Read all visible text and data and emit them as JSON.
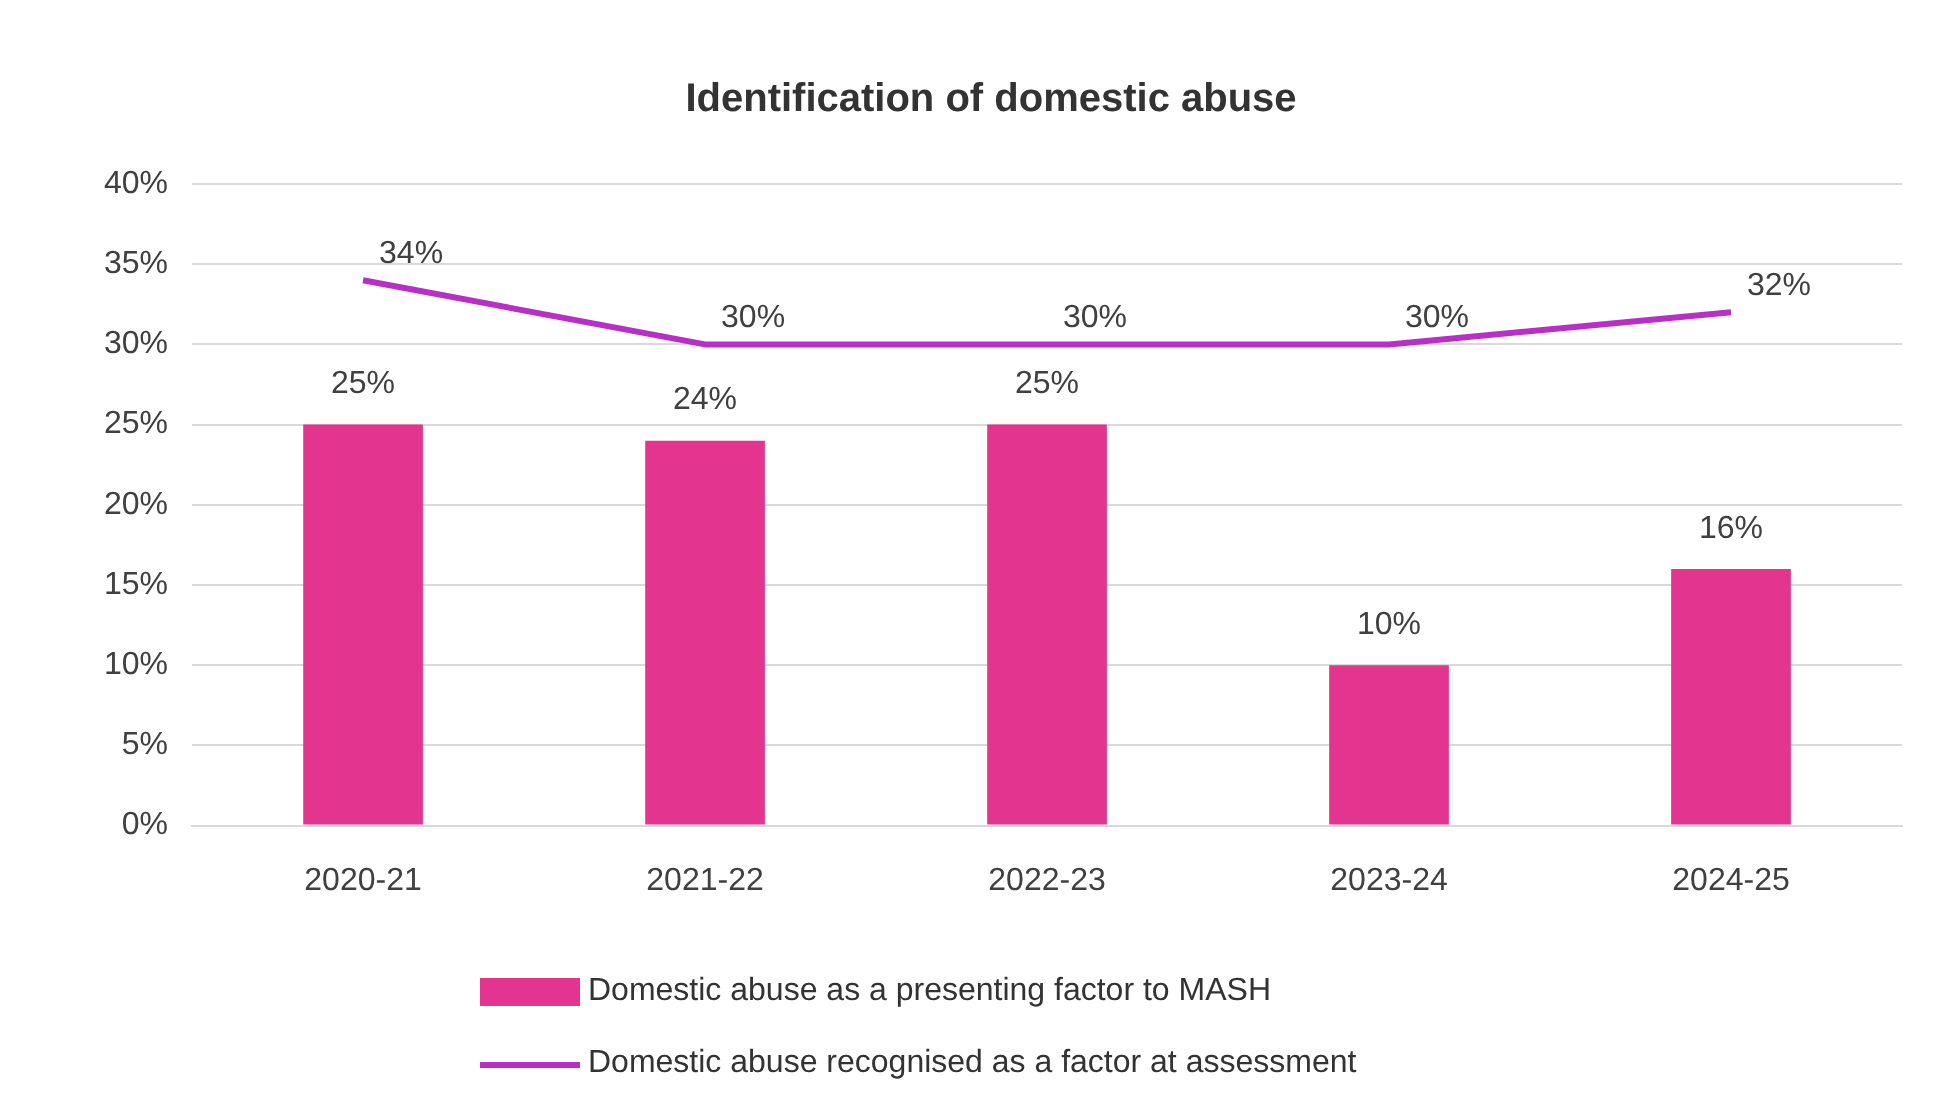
{
  "chart_data": {
    "type": "bar",
    "title": "Identification of domestic abuse",
    "categories": [
      "2020-21",
      "2021-22",
      "2022-23",
      "2023-24",
      "2024-25"
    ],
    "series": [
      {
        "name": "Domestic abuse as a presenting factor to MASH",
        "color": "#e33590",
        "values": [
          25,
          24,
          25,
          10,
          16
        ],
        "value_labels": [
          "25%",
          "24%",
          "25%",
          "10%",
          "16%"
        ]
      },
      {
        "name": "Domestic abuse recognised as a factor at assessment",
        "type": "line",
        "color": "#b72fc6",
        "values": [
          34,
          30,
          30,
          30,
          32
        ],
        "value_labels": [
          "34%",
          "30%",
          "30%",
          "30%",
          "32%"
        ]
      }
    ],
    "ylim": [
      0,
      40
    ],
    "yticks": [
      {
        "value": 0,
        "label": "0%"
      },
      {
        "value": 5,
        "label": "5%"
      },
      {
        "value": 10,
        "label": "10%"
      },
      {
        "value": 15,
        "label": "15%"
      },
      {
        "value": 20,
        "label": "20%"
      },
      {
        "value": 25,
        "label": "25%"
      },
      {
        "value": 30,
        "label": "30%"
      },
      {
        "value": 35,
        "label": "35%"
      },
      {
        "value": 40,
        "label": "40%"
      }
    ],
    "grid": "y",
    "legend": "bottom",
    "marker": "none",
    "line_style": "solid"
  }
}
